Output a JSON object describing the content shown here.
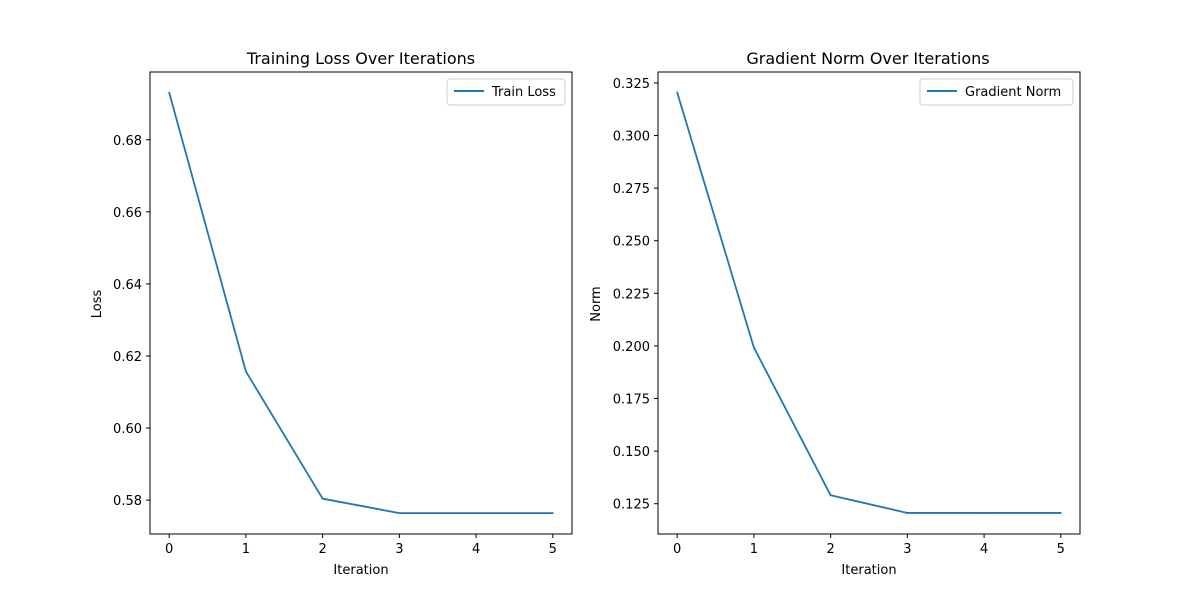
{
  "chart_data": [
    {
      "type": "line",
      "title": "Training Loss Over Iterations",
      "xlabel": "Iteration",
      "ylabel": "Loss",
      "xlim": [
        -0.25,
        5.25
      ],
      "ylim": [
        0.5706,
        0.6988
      ],
      "xticks": [
        0,
        1,
        2,
        3,
        4,
        5
      ],
      "xtick_labels": [
        "0",
        "1",
        "2",
        "3",
        "4",
        "5"
      ],
      "yticks": [
        0.58,
        0.6,
        0.62,
        0.64,
        0.66,
        0.68
      ],
      "ytick_labels": [
        "0.58",
        "0.60",
        "0.62",
        "0.64",
        "0.66",
        "0.68"
      ],
      "grid": false,
      "legend_position": "top-right",
      "series": [
        {
          "name": "Train Loss",
          "color": "#1f77b4",
          "x": [
            0,
            1,
            2,
            3,
            4,
            5
          ],
          "y": [
            0.6931,
            0.6157,
            0.5804,
            0.5764,
            0.5764,
            0.5764
          ]
        }
      ]
    },
    {
      "type": "line",
      "title": "Gradient Norm Over Iterations",
      "xlabel": "Iteration",
      "ylabel": "Norm",
      "xlim": [
        -0.25,
        5.25
      ],
      "ylim": [
        0.1106,
        0.3302
      ],
      "xticks": [
        0,
        1,
        2,
        3,
        4,
        5
      ],
      "xtick_labels": [
        "0",
        "1",
        "2",
        "3",
        "4",
        "5"
      ],
      "yticks": [
        0.125,
        0.15,
        0.175,
        0.2,
        0.225,
        0.25,
        0.275,
        0.3,
        0.325
      ],
      "ytick_labels": [
        "0.125",
        "0.150",
        "0.175",
        "0.200",
        "0.225",
        "0.250",
        "0.275",
        "0.300",
        "0.325"
      ],
      "grid": false,
      "legend_position": "top-right",
      "series": [
        {
          "name": "Gradient Norm",
          "color": "#1f77b4",
          "x": [
            0,
            1,
            2,
            3,
            4,
            5
          ],
          "y": [
            0.3205,
            0.1992,
            0.129,
            0.1206,
            0.1206,
            0.1206
          ]
        }
      ]
    }
  ]
}
